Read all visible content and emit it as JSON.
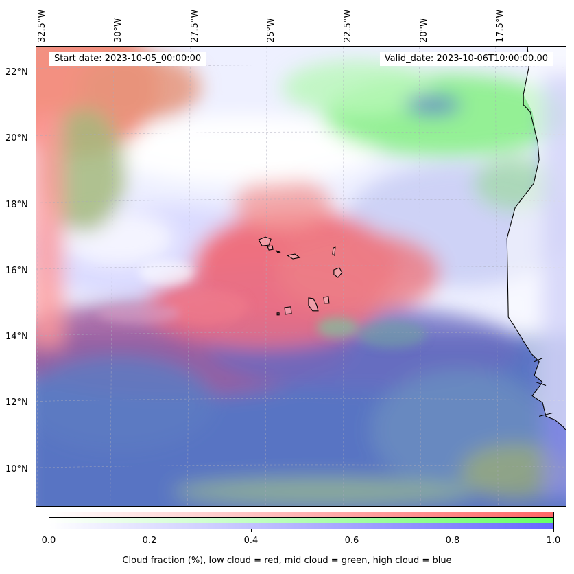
{
  "header": {
    "start_date": "Start date: 2023-10-05_00:00:00",
    "valid_date": "Valid_date: 2023-10-06T10:00:00.00"
  },
  "axes": {
    "longitude_labels": [
      "32.5°W",
      "30°W",
      "27.5°W",
      "25°W",
      "22.5°W",
      "20°W",
      "17.5°W"
    ],
    "latitude_labels": [
      "22°N",
      "20°N",
      "18°N",
      "16°N",
      "14°N",
      "12°N",
      "10°N"
    ]
  },
  "colorbar": {
    "ticks": [
      "0.0",
      "0.2",
      "0.4",
      "0.6",
      "0.8",
      "1.0"
    ],
    "label": "Cloud fraction (%), low cloud = red, mid cloud = green, high cloud = blue",
    "colors": {
      "low": "#ff6666",
      "mid": "#66ff66",
      "high": "#6666ff"
    }
  },
  "map": {
    "land_color": "#ffffff",
    "coastline_color": "#000000"
  }
}
